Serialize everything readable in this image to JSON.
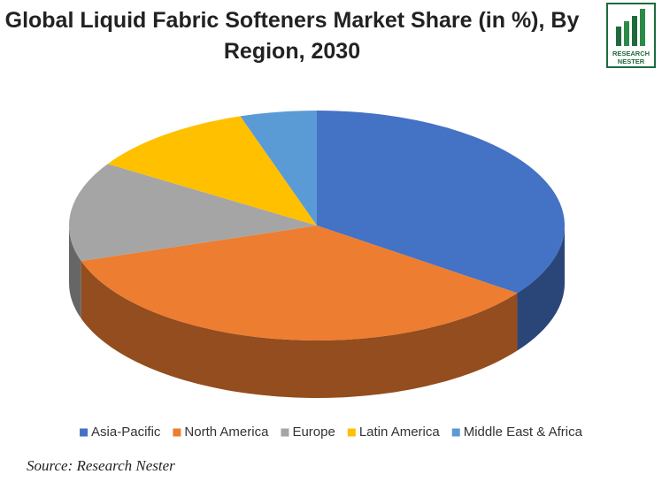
{
  "chart_data": {
    "type": "pie3d",
    "title": "Global Liquid Fabric Softeners Market Share (in %), By Region, 2030",
    "categories": [
      "Asia-Pacific",
      "North America",
      "Europe",
      "Latin America",
      "Middle East & Africa"
    ],
    "values": [
      35,
      35,
      14,
      11,
      5
    ],
    "colors": [
      "#4472c4",
      "#ed7d31",
      "#a5a5a5",
      "#ffc000",
      "#5b9bd5"
    ],
    "legend": "bottom",
    "source": "Source: Research Nester"
  },
  "logo": {
    "line1": "RESEARCH",
    "line2": "NESTER"
  }
}
